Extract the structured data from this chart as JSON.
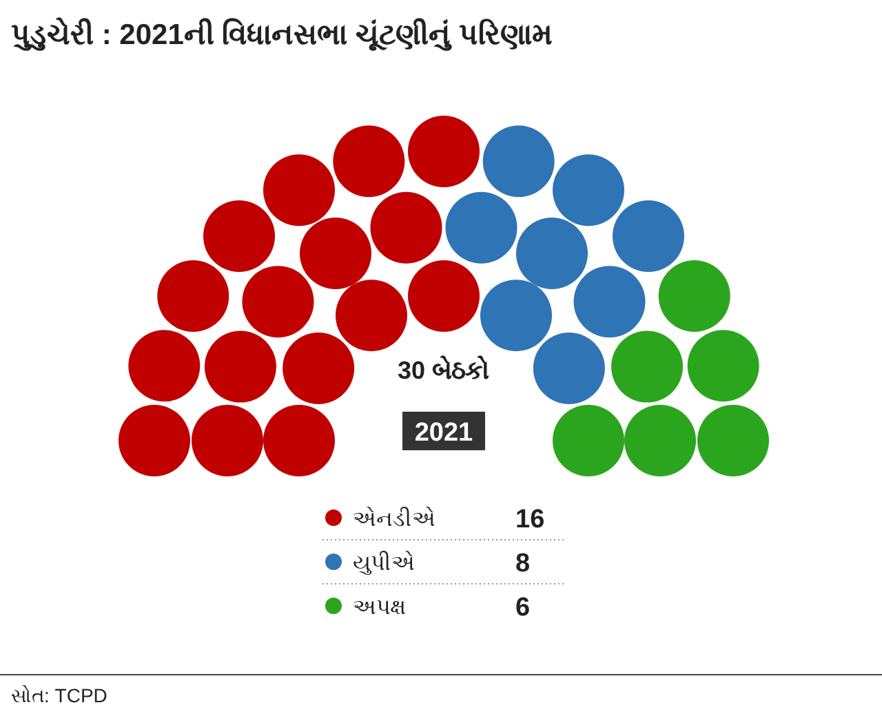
{
  "chart_data": {
    "type": "other",
    "title": "પુડુચેરી : 2021ની વિધાનસભા ચૂંટણીનું પરિણામ",
    "categories": [
      "એનડીએ",
      "યુપીએ",
      "અપક્ષ"
    ],
    "values": [
      16,
      8,
      6
    ],
    "colors": [
      "#c00000",
      "#2f74b5",
      "#2ca51e"
    ],
    "annotations": [
      "30 બેઠકો",
      "2021",
      "સોત: TCPD"
    ],
    "data_labels": true
  }
}
